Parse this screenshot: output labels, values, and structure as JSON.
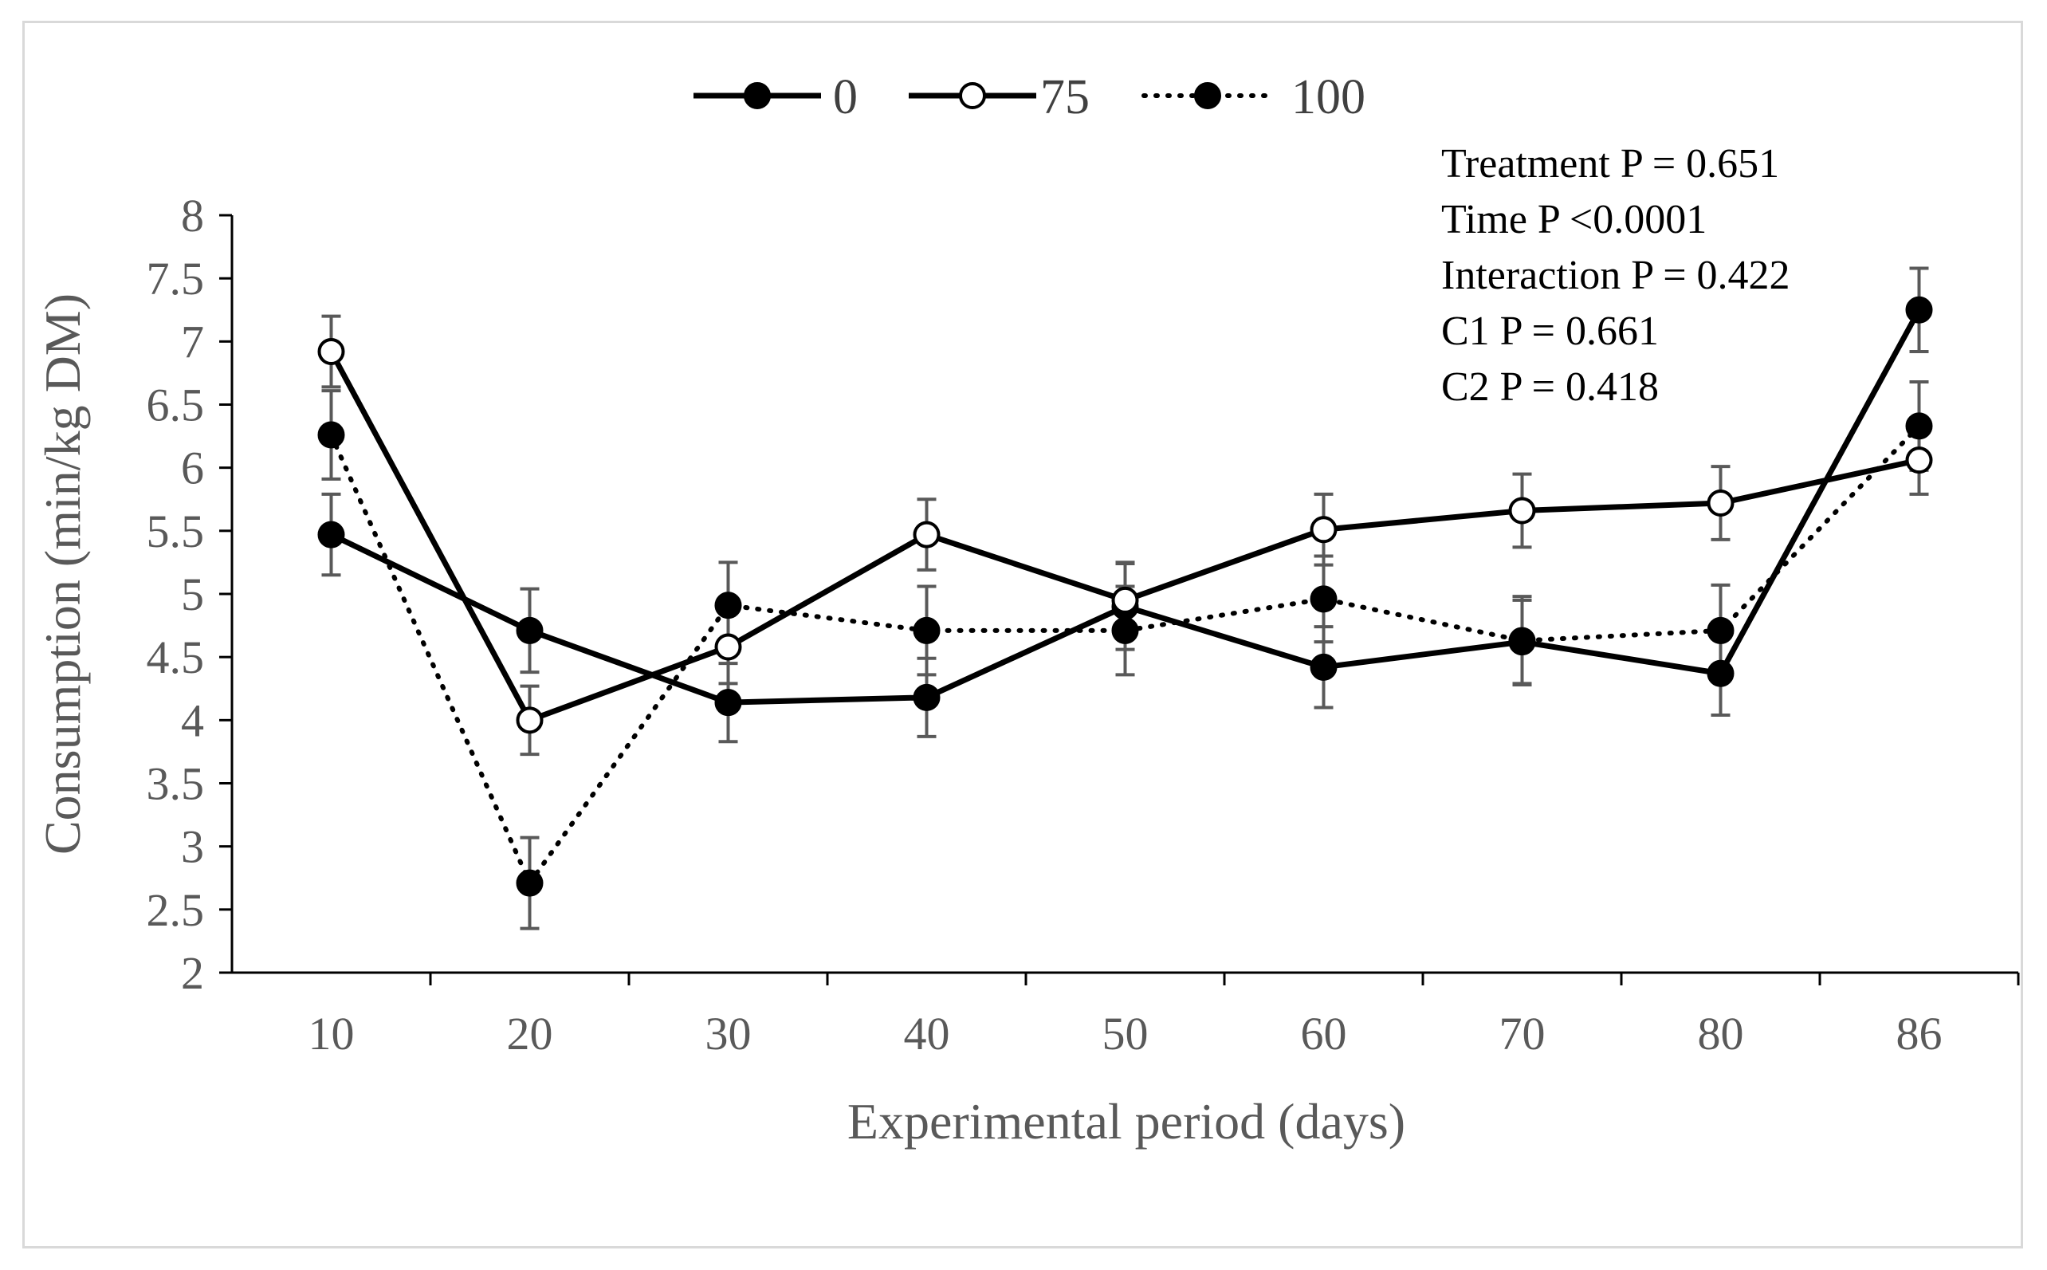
{
  "chart_data": {
    "type": "line",
    "title": "",
    "xlabel": "Experimental period (days)",
    "ylabel": "Consumption (min/kg DM)",
    "categories": [
      "10",
      "20",
      "30",
      "40",
      "50",
      "60",
      "70",
      "80",
      "86"
    ],
    "ylim": [
      2,
      8
    ],
    "yticks": [
      "2",
      "2.5",
      "3",
      "3.5",
      "4",
      "4.5",
      "5",
      "5.5",
      "6",
      "6.5",
      "7",
      "7.5",
      "8"
    ],
    "grid": false,
    "legend_position": "top-center",
    "series": [
      {
        "name": "0",
        "style": "solid",
        "marker": "filled-circle",
        "color": "#000000",
        "values": [
          5.47,
          4.71,
          4.14,
          4.18,
          4.9,
          4.42,
          4.62,
          4.37,
          7.25
        ],
        "errors": [
          0.32,
          0.33,
          0.31,
          0.31,
          0.34,
          0.32,
          0.33,
          0.33,
          0.33
        ]
      },
      {
        "name": "75",
        "style": "solid",
        "marker": "open-circle",
        "color": "#000000",
        "values": [
          6.92,
          4.0,
          4.58,
          5.47,
          4.95,
          5.51,
          5.66,
          5.72,
          6.06
        ],
        "errors": [
          0.28,
          0.27,
          0.29,
          0.28,
          0.3,
          0.28,
          0.29,
          0.29,
          0.27
        ]
      },
      {
        "name": "100",
        "style": "dotted",
        "marker": "filled-circle",
        "color": "#000000",
        "values": [
          6.26,
          2.71,
          4.91,
          4.71,
          4.71,
          4.96,
          4.63,
          4.71,
          6.33
        ],
        "errors": [
          0.35,
          0.36,
          0.34,
          0.35,
          0.35,
          0.34,
          0.35,
          0.36,
          0.35
        ]
      }
    ],
    "annotations": [
      "Treatment P = 0.651",
      "Time P <0.0001",
      "Interaction P = 0.422",
      "C1 P = 0.661",
      "C2 P = 0.418"
    ]
  }
}
